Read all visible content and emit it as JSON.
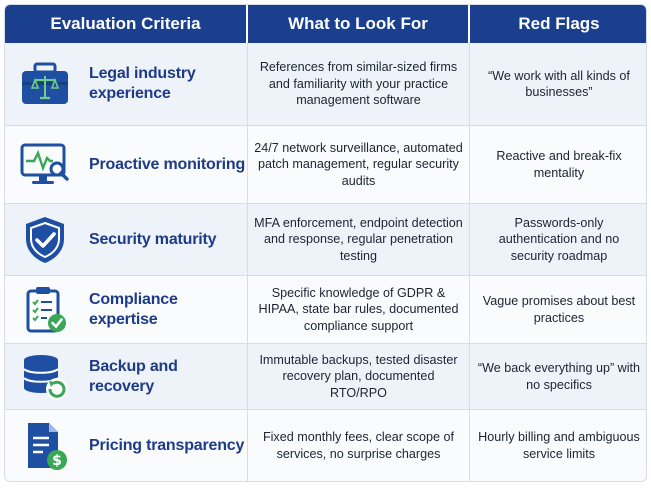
{
  "headers": {
    "criteria": "Evaluation Criteria",
    "look_for": "What to Look For",
    "red_flags": "Red Flags"
  },
  "rows": [
    {
      "icon": "briefcase-scales-icon",
      "criteria": "Legal industry experience",
      "look_for": "References from similar-sized firms and familiarity with your practice management software",
      "red_flags": "“We work with all kinds of businesses”"
    },
    {
      "icon": "monitor-pulse-icon",
      "criteria": "Proactive monitoring",
      "look_for": "24/7 network surveillance, automated patch management, regular security audits",
      "red_flags": "Reactive and break-fix mentality"
    },
    {
      "icon": "shield-check-icon",
      "criteria": "Security maturity",
      "look_for": "MFA enforcement, endpoint detection and response, regular penetration testing",
      "red_flags": "Passwords-only authentication and no security roadmap"
    },
    {
      "icon": "clipboard-check-icon",
      "criteria": "Compliance expertise",
      "look_for": "Specific knowledge of GDPR & HIPAA, state bar rules, documented compliance support",
      "red_flags": "Vague promises about best practices"
    },
    {
      "icon": "database-restore-icon",
      "criteria": "Backup and recovery",
      "look_for": "Immutable backups, tested disaster recovery plan, documented RTO/RPO",
      "red_flags": "“We back everything up” with no specifics"
    },
    {
      "icon": "invoice-dollar-icon",
      "criteria": "Pricing transparency",
      "look_for": "Fixed monthly fees, clear scope of services, no surprise charges",
      "red_flags": "Hourly billing and ambiguous service limits"
    }
  ],
  "colors": {
    "header_bg": "#1a3f8f",
    "criteria_text": "#1d3b86",
    "icon_blue": "#1f4fa3",
    "icon_green": "#3aa757"
  }
}
